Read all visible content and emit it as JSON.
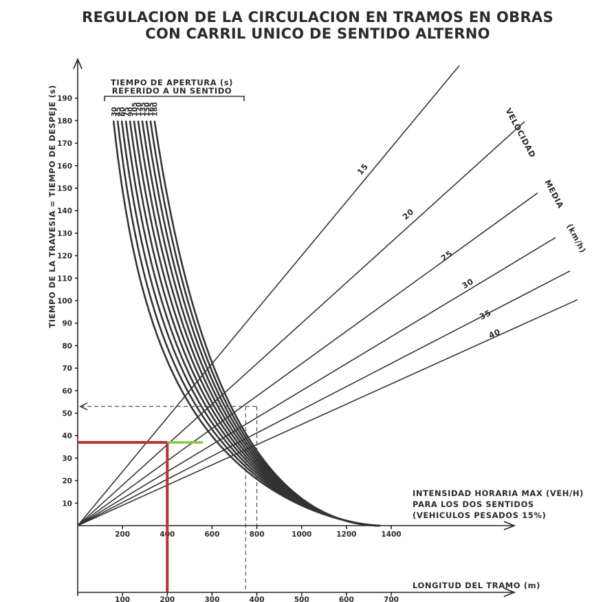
{
  "chart_data": {
    "type": "line",
    "title": [
      "REGULACION DE LA CIRCULACION EN TRAMOS EN OBRAS",
      "CON CARRIL UNICO DE SENTIDO ALTERNO"
    ],
    "ylabel": "TIEMPO DE LA TRAVESIA = TIEMPO DE DESPEJE (s)",
    "y_ticks": [
      10,
      20,
      30,
      40,
      50,
      60,
      70,
      80,
      90,
      100,
      110,
      120,
      130,
      140,
      150,
      160,
      170,
      180,
      190
    ],
    "ylim": [
      0,
      200
    ],
    "x_top": {
      "label": [
        "INTENSIDAD HORARIA MAX (VEH/H)",
        "PARA LOS DOS SENTIDOS",
        "(VEHICULOS PESADOS 15%)"
      ],
      "ticks": [
        200,
        400,
        600,
        800,
        1000,
        1200,
        1400
      ],
      "range": [
        0,
        1500
      ]
    },
    "x_bottom": {
      "label": "LONGITUD DEL TRAMO (m)",
      "ticks": [
        100,
        200,
        300,
        400,
        500,
        600,
        700
      ],
      "range": [
        0,
        750
      ]
    },
    "open_time": {
      "label": [
        "TIEMPO DE APERTURA (s)",
        "REFERIDO A UN SENTIDO"
      ],
      "values": [
        30,
        45,
        60,
        75,
        90,
        105,
        120,
        135,
        150,
        165,
        180
      ]
    },
    "speed": {
      "label": [
        "VELOCIDAD",
        "MEDIA",
        "(km/h)"
      ],
      "series": [
        {
          "name": "15",
          "slope_s_per_m": 0.24
        },
        {
          "name": "20",
          "slope_s_per_m": 0.18
        },
        {
          "name": "25",
          "slope_s_per_m": 0.144
        },
        {
          "name": "30",
          "slope_s_per_m": 0.12
        },
        {
          "name": "35",
          "slope_s_per_m": 0.103
        },
        {
          "name": "40",
          "slope_s_per_m": 0.09
        }
      ]
    },
    "reading_example": {
      "length_m": 200,
      "time_s": 37,
      "intensity_vph": 400
    },
    "dashed_example": {
      "length_m": 375,
      "time_s": 53,
      "intensity_vph": 800
    },
    "colors": {
      "ink": "#333333",
      "highlight_red": "#b5343a",
      "highlight_green": "#8cc63f"
    }
  }
}
